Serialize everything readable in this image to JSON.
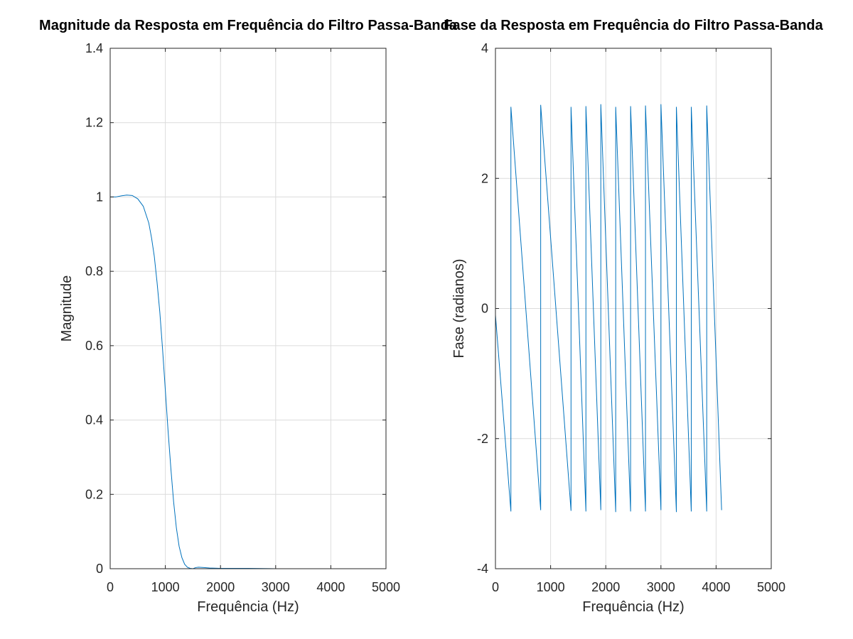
{
  "chart_data": [
    {
      "type": "line",
      "title": "Magnitude da Resposta em Frequência do Filtro Passa-Banda",
      "xlabel": "Frequência (Hz)",
      "ylabel": "Magnitude",
      "xlim": [
        0,
        5000
      ],
      "ylim": [
        0,
        1.4
      ],
      "xticks": [
        "0",
        "1000",
        "2000",
        "3000",
        "4000",
        "5000"
      ],
      "yticks": [
        "0",
        "0.2",
        "0.4",
        "0.6",
        "0.8",
        "1",
        "1.2",
        "1.4"
      ],
      "grid": true,
      "color": "#0072bd",
      "series": [
        {
          "x": [
            0,
            100,
            200,
            300,
            400,
            500,
            600,
            700,
            750,
            800,
            850,
            900,
            950,
            1000,
            1050,
            1100,
            1150,
            1200,
            1250,
            1300,
            1350,
            1400,
            1450,
            1500,
            1550,
            1600,
            1700,
            1800,
            2000,
            2500,
            3000,
            3500,
            4000,
            4100
          ],
          "y": [
            1.0,
            1.0,
            1.003,
            1.005,
            1.004,
            0.995,
            0.975,
            0.93,
            0.89,
            0.84,
            0.77,
            0.69,
            0.59,
            0.48,
            0.37,
            0.27,
            0.18,
            0.11,
            0.06,
            0.03,
            0.012,
            0.004,
            0.001,
            0.0,
            0.003,
            0.004,
            0.003,
            0.002,
            0.001,
            0.001,
            0.0,
            0.0,
            0.0,
            0.0
          ]
        }
      ]
    },
    {
      "type": "line",
      "title": "Fase da Resposta em Frequência do Filtro Passa-Banda",
      "xlabel": "Frequência (Hz)",
      "ylabel": "Fase (radianos)",
      "xlim": [
        0,
        5000
      ],
      "ylim": [
        -4,
        4
      ],
      "xticks": [
        "0",
        "1000",
        "2000",
        "3000",
        "4000",
        "5000"
      ],
      "yticks": [
        "-4",
        "-2",
        "0",
        "2",
        "4"
      ],
      "grid": true,
      "color": "#0072bd",
      "series": [
        {
          "x": [
            0,
            280,
            280,
            820,
            820,
            1370,
            1370,
            1640,
            1640,
            1910,
            1910,
            2180,
            2180,
            2450,
            2450,
            2720,
            2720,
            3000,
            3000,
            3280,
            3280,
            3550,
            3550,
            3830,
            3830,
            4100
          ],
          "y": [
            -0.1,
            -3.12,
            3.1,
            -3.1,
            3.13,
            -3.11,
            3.1,
            -3.12,
            3.11,
            -3.1,
            3.14,
            -3.13,
            3.1,
            -3.12,
            3.11,
            -3.12,
            3.12,
            -3.1,
            3.14,
            -3.13,
            3.1,
            -3.12,
            3.1,
            -3.12,
            3.12,
            -3.1
          ]
        }
      ]
    }
  ]
}
